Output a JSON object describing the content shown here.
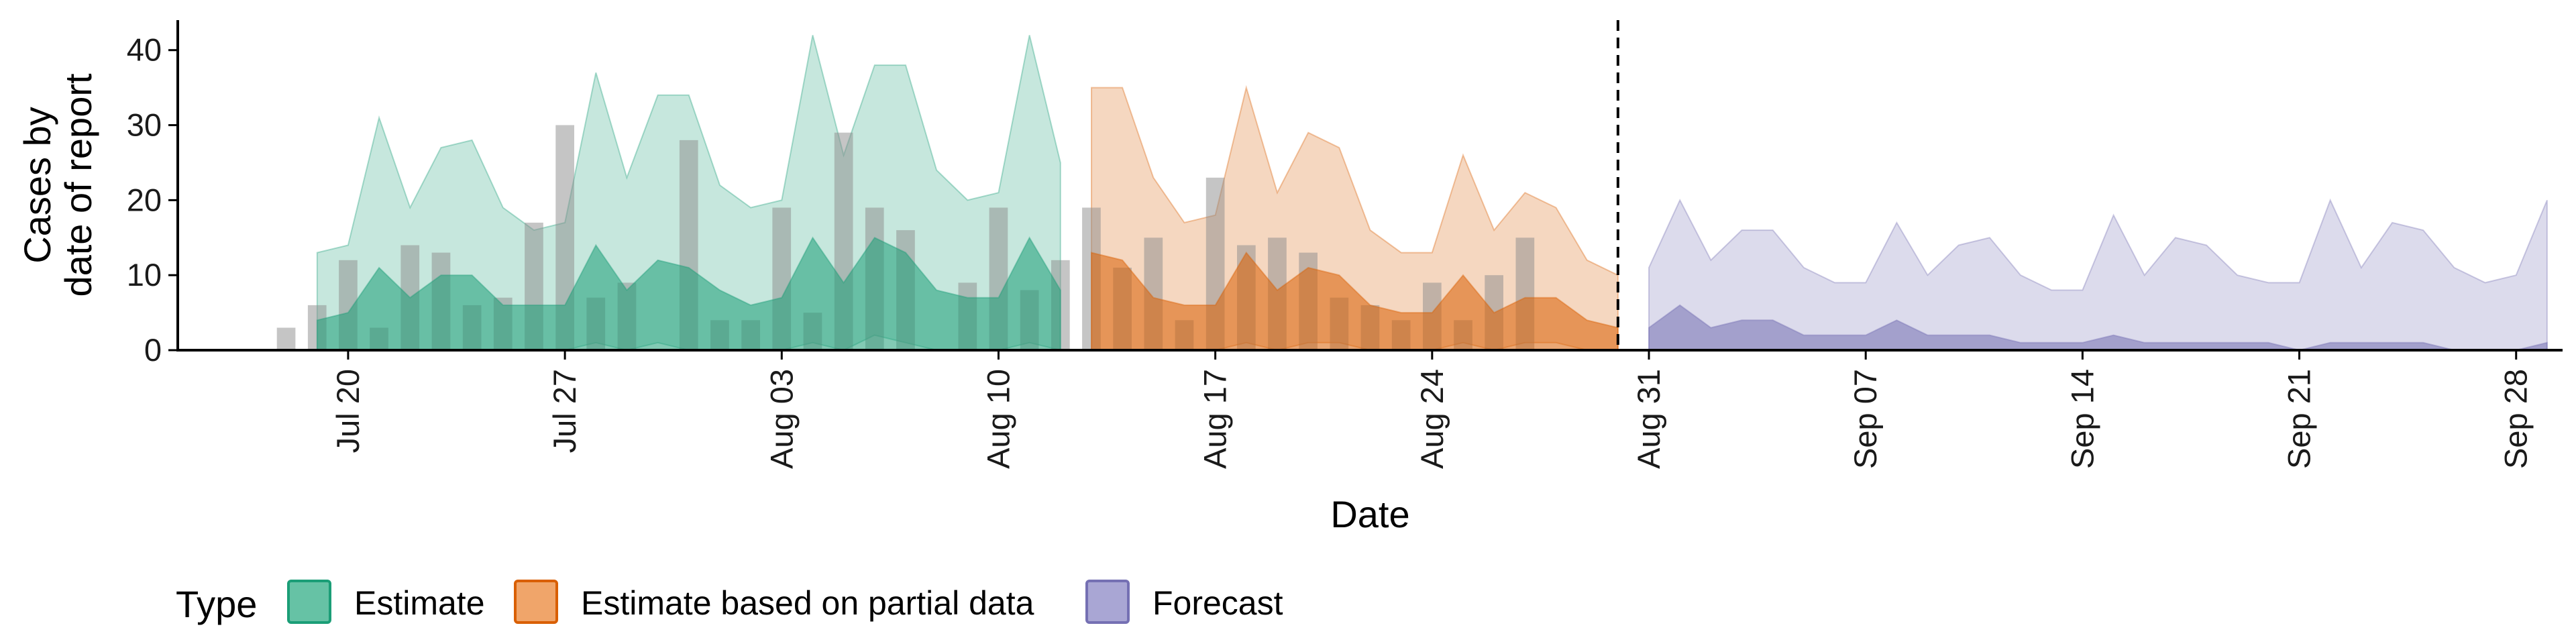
{
  "chart_data": {
    "type": "area",
    "x_start_date": "2020-07-18",
    "xlabel": "Date",
    "ylabel_lines": [
      "Cases by",
      "date of report"
    ],
    "ylim": [
      0,
      44
    ],
    "yticks": [
      0,
      10,
      20,
      30,
      40
    ],
    "xlim_days": [
      -3.5,
      73.5
    ],
    "xticks": [
      {
        "label": "Jul 20",
        "day": 2
      },
      {
        "label": "Jul 27",
        "day": 9
      },
      {
        "label": "Aug 03",
        "day": 16
      },
      {
        "label": "Aug 10",
        "day": 23
      },
      {
        "label": "Aug 17",
        "day": 30
      },
      {
        "label": "Aug 24",
        "day": 37
      },
      {
        "label": "Aug 31",
        "day": 44
      },
      {
        "label": "Sep 07",
        "day": 51
      },
      {
        "label": "Sep 14",
        "day": 58
      },
      {
        "label": "Sep 21",
        "day": 65
      },
      {
        "label": "Sep 28",
        "day": 72
      }
    ],
    "forecast_line_day": 43,
    "observed_cases": [
      3,
      6,
      12,
      3,
      14,
      13,
      6,
      7,
      17,
      30,
      7,
      9,
      0,
      28,
      4,
      4,
      19,
      5,
      29,
      19,
      16,
      0,
      9,
      19,
      8,
      12,
      19,
      11,
      15,
      4,
      23,
      14,
      15,
      13,
      7,
      6,
      4,
      9,
      4,
      10,
      15
    ],
    "legend": {
      "title": "Type",
      "position": "bottom",
      "items": [
        {
          "label": "Estimate",
          "fill": "#66c2a5",
          "stroke": "#1b9e77"
        },
        {
          "label": "Estimate based on partial data",
          "fill": "#f0a56a",
          "stroke": "#d95f02"
        },
        {
          "label": "Forecast",
          "fill": "#a9a6d4",
          "stroke": "#7570b3"
        }
      ]
    },
    "series": [
      {
        "name": "Estimate",
        "color": "#1b9e77",
        "start_day": 1,
        "outer_upper": [
          13,
          14,
          31,
          19,
          27,
          28,
          19,
          16,
          17,
          37,
          23,
          34,
          34,
          22,
          19,
          20,
          42,
          26,
          38,
          38,
          24,
          20,
          21,
          42,
          25
        ],
        "outer_lower": [
          0,
          0,
          0,
          0,
          0,
          0,
          0,
          0,
          0,
          1,
          0,
          1,
          0,
          0,
          0,
          0,
          1,
          0,
          2,
          1,
          0,
          0,
          0,
          1,
          0
        ],
        "inner_upper": [
          4,
          5,
          11,
          7,
          10,
          10,
          6,
          6,
          6,
          14,
          8,
          12,
          11,
          8,
          6,
          7,
          15,
          9,
          15,
          13,
          8,
          7,
          7,
          15,
          8
        ],
        "inner_lower": [
          0,
          0,
          0,
          0,
          0,
          0,
          0,
          0,
          0,
          0,
          0,
          0,
          0,
          0,
          0,
          0,
          0,
          0,
          0,
          0,
          0,
          0,
          0,
          0,
          0
        ]
      },
      {
        "name": "Estimate based on partial data",
        "color": "#d95f02",
        "start_day": 26,
        "outer_upper": [
          35,
          35,
          23,
          17,
          18,
          35,
          21,
          29,
          27,
          16,
          13,
          13,
          26,
          16,
          21,
          19,
          12,
          10
        ],
        "outer_lower": [
          0,
          0,
          0,
          0,
          0,
          1,
          0,
          1,
          1,
          0,
          0,
          0,
          1,
          0,
          1,
          1,
          0,
          0
        ],
        "inner_upper": [
          13,
          12,
          7,
          6,
          6,
          13,
          8,
          11,
          10,
          6,
          5,
          5,
          10,
          5,
          7,
          7,
          4,
          3
        ],
        "inner_lower": [
          0,
          0,
          0,
          0,
          0,
          0,
          0,
          0,
          0,
          0,
          0,
          0,
          0,
          0,
          0,
          0,
          0,
          0
        ]
      },
      {
        "name": "Forecast",
        "color": "#7570b3",
        "start_day": 44,
        "outer_upper": [
          11,
          20,
          12,
          16,
          16,
          11,
          9,
          9,
          17,
          10,
          14,
          15,
          10,
          8,
          8,
          18,
          10,
          15,
          14,
          10,
          9,
          9,
          20,
          11,
          17,
          16,
          11,
          9,
          10,
          20
        ],
        "outer_lower": [
          0,
          0,
          0,
          0,
          0,
          0,
          0,
          0,
          0,
          0,
          0,
          0,
          0,
          0,
          0,
          0,
          0,
          0,
          0,
          0,
          0,
          0,
          0,
          0,
          0,
          0,
          0,
          0,
          0,
          0
        ],
        "inner_upper": [
          3,
          6,
          3,
          4,
          4,
          2,
          2,
          2,
          4,
          2,
          2,
          2,
          1,
          1,
          1,
          2,
          1,
          1,
          1,
          1,
          1,
          0,
          1,
          1,
          1,
          1,
          0,
          0,
          0,
          1
        ],
        "inner_lower": [
          0,
          0,
          0,
          0,
          0,
          0,
          0,
          0,
          0,
          0,
          0,
          0,
          0,
          0,
          0,
          0,
          0,
          0,
          0,
          0,
          0,
          0,
          0,
          0,
          0,
          0,
          0,
          0,
          0,
          0
        ]
      }
    ]
  }
}
